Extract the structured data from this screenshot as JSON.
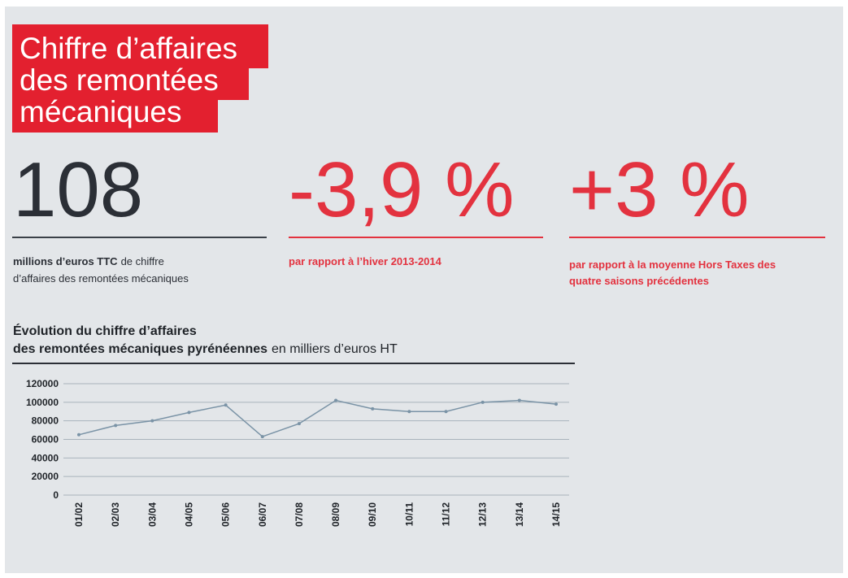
{
  "header": {
    "title": [
      "Chiffre d’affaires",
      "des remontées",
      "mécaniques"
    ]
  },
  "stats": [
    {
      "figure": "108",
      "caption_bold": "millions d’euros TTC",
      "caption": [
        "de chiffre",
        "d’affaires des remontées mécaniques"
      ]
    },
    {
      "figure": "-3,9 %",
      "caption_bold": "par rapport à l’hiver 2013-2014",
      "caption": []
    },
    {
      "figure": "+3 %",
      "caption_bold": "par rapport à la moyenne Hors Taxes des quatre saisons précédentes",
      "caption": []
    }
  ],
  "chart_data": {
    "type": "line",
    "title": [
      "Évolution du chiffre d’affaires",
      "des remontées mécaniques pyrénéennes"
    ],
    "subtitle": "en milliers d’euros HT",
    "categories": [
      "01/02",
      "02/03",
      "03/04",
      "04/05",
      "05/06",
      "06/07",
      "07/08",
      "08/09",
      "09/10",
      "10/11",
      "11/12",
      "12/13",
      "13/14",
      "14/15"
    ],
    "series": [
      {
        "name": "Chiffre d’affaires",
        "color": "#7a93a6",
        "values": [
          65000,
          75000,
          80000,
          89000,
          97000,
          63000,
          77000,
          102000,
          93000,
          90000,
          90000,
          100000,
          102000,
          98000
        ]
      }
    ],
    "ylim": [
      0,
      120000
    ],
    "yticks": [
      0,
      20000,
      40000,
      60000,
      80000,
      100000,
      120000
    ],
    "grid": true
  }
}
